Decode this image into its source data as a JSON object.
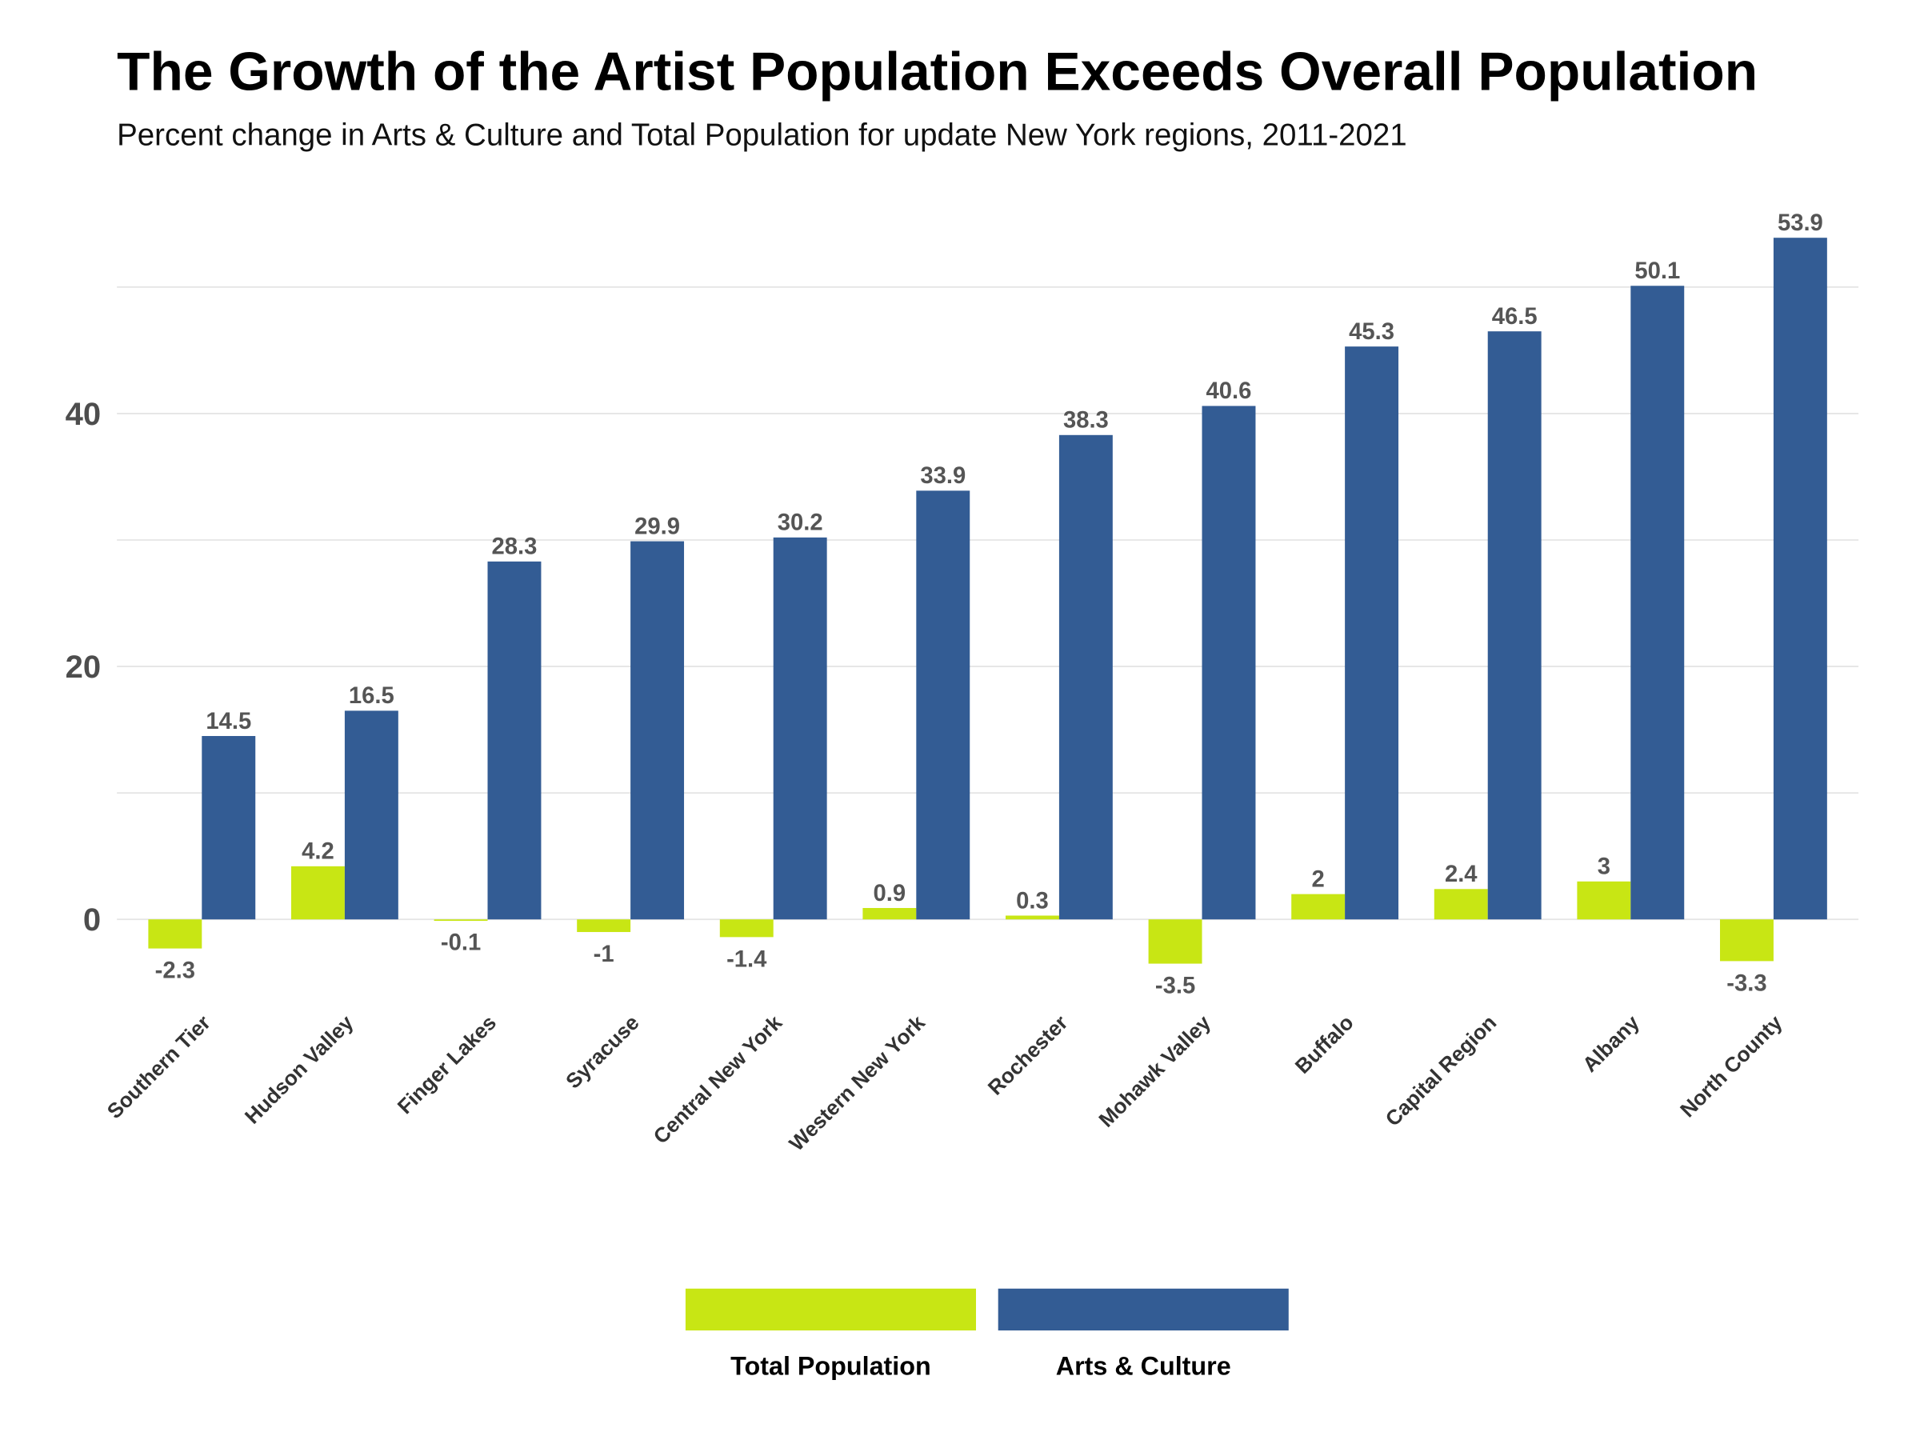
{
  "chart_data": {
    "type": "bar",
    "title": "The Growth of the Artist Population Exceeds Overall Population",
    "subtitle": "Percent change in Arts & Culture and Total Population for update New York regions, 2011-2021",
    "xlabel": "",
    "ylabel": "",
    "ylim": [
      -6,
      55
    ],
    "yticks": [
      0,
      20,
      40
    ],
    "grid": true,
    "legend_position": "bottom",
    "categories": [
      "Southern Tier",
      "Hudson Valley",
      "Finger Lakes",
      "Syracuse",
      "Central New York",
      "Western New York",
      "Rochester",
      "Mohawk Valley",
      "Buffalo",
      "Capital Region",
      "Albany",
      "North County"
    ],
    "series": [
      {
        "name": "Total Population",
        "color": "#c8e614",
        "values": [
          -2.3,
          4.2,
          -0.1,
          -1,
          -1.4,
          0.9,
          0.3,
          -3.5,
          2,
          2.4,
          3,
          -3.3
        ]
      },
      {
        "name": "Arts & Culture",
        "color": "#335c94",
        "values": [
          14.5,
          16.5,
          28.3,
          29.9,
          30.2,
          33.9,
          38.3,
          40.6,
          45.3,
          46.5,
          50.1,
          53.9
        ]
      }
    ]
  }
}
